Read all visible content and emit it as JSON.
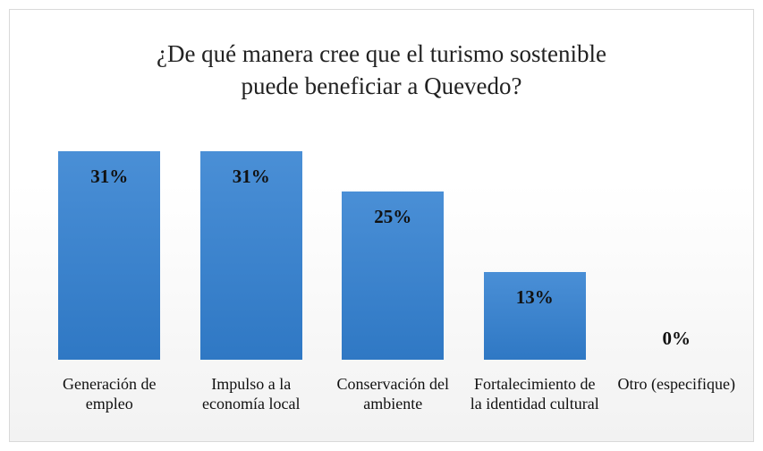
{
  "chart_data": {
    "type": "bar",
    "title": [
      "¿De qué manera cree que el turismo sostenible",
      "puede beneficiar a Quevedo?"
    ],
    "categories": [
      "Generación de empleo",
      "Impulso a la economía local",
      "Conservación del ambiente",
      "Fortalecimiento de la identidad cultural",
      "Otro (especifique)"
    ],
    "values": [
      31,
      31,
      25,
      13,
      0
    ],
    "value_labels": [
      "31%",
      "31%",
      "25%",
      "13%",
      "0%"
    ],
    "color": "#4a8fd6"
  }
}
